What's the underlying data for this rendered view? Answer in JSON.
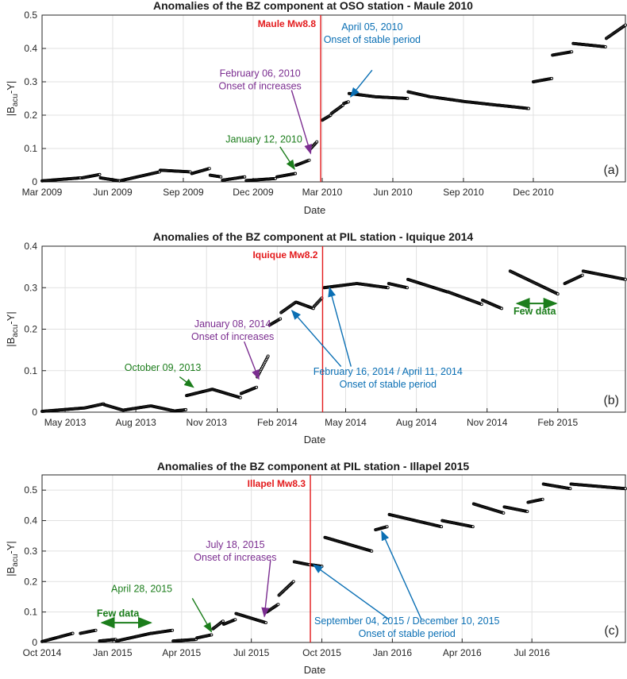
{
  "chart_data": [
    {
      "type": "scatter",
      "panel_label": "(a)",
      "title": "Anomalies of the BZ component at OSO station - Maule 2010",
      "xlabel": "Date",
      "ylabel": "|B_acu-Y|",
      "xlim": [
        "2009-03-01",
        "2011-03-31"
      ],
      "ylim": [
        0,
        0.5
      ],
      "yticks": [
        0,
        0.1,
        0.2,
        0.3,
        0.4,
        0.5
      ],
      "xticks": [
        {
          "date": "2009-03-01",
          "label": "Mar 2009"
        },
        {
          "date": "2009-06-01",
          "label": "Jun 2009"
        },
        {
          "date": "2009-09-01",
          "label": "Sep 2009"
        },
        {
          "date": "2009-12-01",
          "label": "Dec 2009"
        },
        {
          "date": "2010-03-01",
          "label": "Mar 2010"
        },
        {
          "date": "2010-06-01",
          "label": "Jun 2010"
        },
        {
          "date": "2010-09-01",
          "label": "Sep 2010"
        },
        {
          "date": "2010-12-01",
          "label": "Dec 2010"
        }
      ],
      "grid": true,
      "earthquake": {
        "date": "2010-02-27",
        "label": "Maule Mw8.8"
      },
      "segments": [
        {
          "start": "2009-03-01",
          "end": "2009-04-20",
          "y0": 0.003,
          "y1": 0.012
        },
        {
          "start": "2009-04-22",
          "end": "2009-05-15",
          "y0": 0.012,
          "y1": 0.022
        },
        {
          "start": "2009-05-16",
          "end": "2009-06-10",
          "y0": 0.012,
          "y1": 0.003
        },
        {
          "start": "2009-06-12",
          "end": "2009-08-01",
          "y0": 0.004,
          "y1": 0.03
        },
        {
          "start": "2009-08-02",
          "end": "2009-09-10",
          "y0": 0.035,
          "y1": 0.03
        },
        {
          "start": "2009-09-12",
          "end": "2009-10-05",
          "y0": 0.025,
          "y1": 0.04
        },
        {
          "start": "2009-10-06",
          "end": "2009-10-20",
          "y0": 0.02,
          "y1": 0.015
        },
        {
          "start": "2009-10-22",
          "end": "2009-11-20",
          "y0": 0.005,
          "y1": 0.015
        },
        {
          "start": "2009-11-22",
          "end": "2009-12-30",
          "y0": 0.004,
          "y1": 0.01
        },
        {
          "start": "2010-01-01",
          "end": "2010-01-25",
          "y0": 0.015,
          "y1": 0.025
        },
        {
          "start": "2010-01-26",
          "end": "2010-02-12",
          "y0": 0.05,
          "y1": 0.065
        },
        {
          "start": "2010-02-14",
          "end": "2010-02-22",
          "y0": 0.1,
          "y1": 0.12
        },
        {
          "start": "2010-03-01",
          "end": "2010-03-12",
          "y0": 0.185,
          "y1": 0.2
        },
        {
          "start": "2010-03-13",
          "end": "2010-03-28",
          "y0": 0.205,
          "y1": 0.23
        },
        {
          "start": "2010-03-29",
          "end": "2010-04-04",
          "y0": 0.235,
          "y1": 0.24
        },
        {
          "start": "2010-04-05",
          "end": "2010-05-10",
          "y0": 0.265,
          "y1": 0.255
        },
        {
          "start": "2010-05-11",
          "end": "2010-06-20",
          "y0": 0.255,
          "y1": 0.25
        },
        {
          "start": "2010-06-21",
          "end": "2010-07-20",
          "y0": 0.27,
          "y1": 0.255
        },
        {
          "start": "2010-07-21",
          "end": "2010-09-05",
          "y0": 0.255,
          "y1": 0.24
        },
        {
          "start": "2010-09-06",
          "end": "2010-10-15",
          "y0": 0.24,
          "y1": 0.23
        },
        {
          "start": "2010-10-16",
          "end": "2010-11-25",
          "y0": 0.23,
          "y1": 0.22
        },
        {
          "start": "2010-12-01",
          "end": "2010-12-25",
          "y0": 0.3,
          "y1": 0.31
        },
        {
          "start": "2010-12-26",
          "end": "2011-01-20",
          "y0": 0.38,
          "y1": 0.39
        },
        {
          "start": "2011-01-22",
          "end": "2011-03-05",
          "y0": 0.415,
          "y1": 0.405
        },
        {
          "start": "2011-03-06",
          "end": "2011-03-31",
          "y0": 0.43,
          "y1": 0.47
        }
      ],
      "annotations": [
        {
          "lines": [
            "January 12, 2010"
          ],
          "color": "#1b7d1b",
          "text_date": "2009-12-15",
          "text_y": 0.118,
          "from_date": "2010-01-05",
          "from_y": 0.105,
          "to_date": "2010-01-24",
          "to_y": 0.038
        },
        {
          "lines": [
            "February 06, 2010",
            "Onset of increases"
          ],
          "color": "#7b2d90",
          "text_date": "2009-12-10",
          "text_y": 0.315,
          "from_date": "2010-01-20",
          "from_y": 0.275,
          "to_date": "2010-02-14",
          "to_y": 0.085
        },
        {
          "lines": [
            "April 05, 2010",
            "Onset of stable period"
          ],
          "color": "#0a6fb4",
          "text_date": "2010-05-05",
          "text_y": 0.455,
          "from_date": "2010-05-05",
          "from_y": 0.335,
          "to_date": "2010-04-07",
          "to_y": 0.255
        }
      ],
      "text_labels": []
    },
    {
      "type": "scatter",
      "panel_label": "(b)",
      "title": "Anomalies of the BZ component at PIL station - Iquique 2014",
      "xlabel": "Date",
      "ylabel": "|B_acu-Y|",
      "xlim": [
        "2013-04-01",
        "2015-04-30"
      ],
      "ylim": [
        0,
        0.4
      ],
      "yticks": [
        0,
        0.1,
        0.2,
        0.3,
        0.4
      ],
      "xticks": [
        {
          "date": "2013-05-01",
          "label": "May 2013"
        },
        {
          "date": "2013-08-01",
          "label": "Aug 2013"
        },
        {
          "date": "2013-11-01",
          "label": "Nov 2013"
        },
        {
          "date": "2014-02-01",
          "label": "Feb 2014"
        },
        {
          "date": "2014-05-01",
          "label": "May 2014"
        },
        {
          "date": "2014-08-01",
          "label": "Aug 2014"
        },
        {
          "date": "2014-11-01",
          "label": "Nov 2014"
        },
        {
          "date": "2015-02-01",
          "label": "Feb 2015"
        }
      ],
      "grid": true,
      "earthquake": {
        "date": "2014-04-01",
        "label": "Iquique Mw8.2"
      },
      "segments": [
        {
          "start": "2013-04-01",
          "end": "2013-05-25",
          "y0": 0.002,
          "y1": 0.01
        },
        {
          "start": "2013-05-26",
          "end": "2013-06-20",
          "y0": 0.01,
          "y1": 0.02
        },
        {
          "start": "2013-06-21",
          "end": "2013-07-15",
          "y0": 0.018,
          "y1": 0.005
        },
        {
          "start": "2013-07-16",
          "end": "2013-08-20",
          "y0": 0.005,
          "y1": 0.015
        },
        {
          "start": "2013-08-21",
          "end": "2013-09-20",
          "y0": 0.015,
          "y1": 0.003
        },
        {
          "start": "2013-09-21",
          "end": "2013-10-05",
          "y0": 0.003,
          "y1": 0.006
        },
        {
          "start": "2013-10-06",
          "end": "2013-11-08",
          "y0": 0.04,
          "y1": 0.055
        },
        {
          "start": "2013-11-09",
          "end": "2013-12-15",
          "y0": 0.055,
          "y1": 0.035
        },
        {
          "start": "2013-12-16",
          "end": "2014-01-05",
          "y0": 0.045,
          "y1": 0.06
        },
        {
          "start": "2014-01-06",
          "end": "2014-01-20",
          "y0": 0.085,
          "y1": 0.135
        },
        {
          "start": "2014-01-22",
          "end": "2014-02-05",
          "y0": 0.21,
          "y1": 0.225
        },
        {
          "start": "2014-02-06",
          "end": "2014-02-25",
          "y0": 0.24,
          "y1": 0.265
        },
        {
          "start": "2014-02-26",
          "end": "2014-03-20",
          "y0": 0.265,
          "y1": 0.25
        },
        {
          "start": "2014-03-21",
          "end": "2014-03-31",
          "y0": 0.255,
          "y1": 0.275
        },
        {
          "start": "2014-04-03",
          "end": "2014-05-15",
          "y0": 0.3,
          "y1": 0.31
        },
        {
          "start": "2014-05-16",
          "end": "2014-06-25",
          "y0": 0.31,
          "y1": 0.3
        },
        {
          "start": "2014-06-26",
          "end": "2014-07-20",
          "y0": 0.31,
          "y1": 0.3
        },
        {
          "start": "2014-07-21",
          "end": "2014-09-10",
          "y0": 0.32,
          "y1": 0.29
        },
        {
          "start": "2014-09-11",
          "end": "2014-10-25",
          "y0": 0.29,
          "y1": 0.26
        },
        {
          "start": "2014-10-26",
          "end": "2014-11-20",
          "y0": 0.27,
          "y1": 0.25
        },
        {
          "start": "2014-12-01",
          "end": "2015-02-01",
          "y0": 0.34,
          "y1": 0.285
        },
        {
          "start": "2015-02-10",
          "end": "2015-03-05",
          "y0": 0.31,
          "y1": 0.33
        },
        {
          "start": "2015-03-06",
          "end": "2015-04-30",
          "y0": 0.34,
          "y1": 0.32
        }
      ],
      "annotations": [
        {
          "lines": [
            "October 09, 2013"
          ],
          "color": "#1b7d1b",
          "text_date": "2013-09-05",
          "text_y": 0.1,
          "from_date": "2013-09-27",
          "from_y": 0.085,
          "to_date": "2013-10-15",
          "to_y": 0.06
        },
        {
          "lines": [
            "January 08, 2014",
            "Onset of increases"
          ],
          "color": "#7b2d90",
          "text_date": "2013-12-05",
          "text_y": 0.205,
          "from_date": "2013-12-20",
          "from_y": 0.17,
          "to_date": "2014-01-08",
          "to_y": 0.08
        },
        {
          "lines": [
            "February 16, 2014 / April 11, 2014",
            "Onset of stable period"
          ],
          "color": "#0a6fb4",
          "text_date": "2014-06-25",
          "text_y": 0.09,
          "from_date": "2014-04-25",
          "from_y": 0.11,
          "to_date": "2014-02-20",
          "to_y": 0.245
        },
        {
          "lines": [],
          "color": "#0a6fb4",
          "text_date": "2014-06-25",
          "text_y": 0.09,
          "from_date": "2014-05-08",
          "from_y": 0.11,
          "to_date": "2014-04-10",
          "to_y": 0.3
        }
      ],
      "text_labels": [
        {
          "text": "Few data",
          "date": "2015-01-02",
          "y": 0.235
        }
      ],
      "double_arrows": [
        {
          "start": "2014-12-10",
          "end": "2015-01-30",
          "y": 0.262
        }
      ]
    },
    {
      "type": "scatter",
      "panel_label": "(c)",
      "title": "Anomalies of the BZ component at PIL station - Illapel 2015",
      "xlabel": "Date",
      "ylabel": "|B_acu-Y|",
      "xlim": [
        "2014-10-01",
        "2016-10-31"
      ],
      "ylim": [
        0,
        0.55
      ],
      "yticks": [
        0,
        0.1,
        0.2,
        0.3,
        0.4,
        0.5
      ],
      "xticks": [
        {
          "date": "2014-10-01",
          "label": "Oct 2014"
        },
        {
          "date": "2015-01-01",
          "label": "Jan 2015"
        },
        {
          "date": "2015-04-01",
          "label": "Apr 2015"
        },
        {
          "date": "2015-07-01",
          "label": "Jul 2015"
        },
        {
          "date": "2015-10-01",
          "label": "Oct 2015"
        },
        {
          "date": "2016-01-01",
          "label": "Jan 2016"
        },
        {
          "date": "2016-04-01",
          "label": "Apr 2016"
        },
        {
          "date": "2016-07-01",
          "label": "Jul 2016"
        }
      ],
      "grid": true,
      "earthquake": {
        "date": "2015-09-16",
        "label": "Illapel Mw8.3"
      },
      "segments": [
        {
          "start": "2014-10-01",
          "end": "2014-11-10",
          "y0": 0.003,
          "y1": 0.03
        },
        {
          "start": "2014-11-20",
          "end": "2014-12-10",
          "y0": 0.03,
          "y1": 0.04
        },
        {
          "start": "2014-12-15",
          "end": "2015-01-05",
          "y0": 0.005,
          "y1": 0.01
        },
        {
          "start": "2015-01-06",
          "end": "2015-02-20",
          "y0": 0.005,
          "y1": 0.03
        },
        {
          "start": "2015-02-21",
          "end": "2015-03-20",
          "y0": 0.03,
          "y1": 0.04
        },
        {
          "start": "2015-03-21",
          "end": "2015-04-20",
          "y0": 0.005,
          "y1": 0.01
        },
        {
          "start": "2015-04-21",
          "end": "2015-05-10",
          "y0": 0.015,
          "y1": 0.025
        },
        {
          "start": "2015-05-12",
          "end": "2015-05-25",
          "y0": 0.045,
          "y1": 0.07
        },
        {
          "start": "2015-05-26",
          "end": "2015-06-10",
          "y0": 0.06,
          "y1": 0.075
        },
        {
          "start": "2015-06-11",
          "end": "2015-07-20",
          "y0": 0.095,
          "y1": 0.065
        },
        {
          "start": "2015-07-21",
          "end": "2015-08-05",
          "y0": 0.1,
          "y1": 0.125
        },
        {
          "start": "2015-08-06",
          "end": "2015-08-25",
          "y0": 0.155,
          "y1": 0.2
        },
        {
          "start": "2015-08-26",
          "end": "2015-09-15",
          "y0": 0.265,
          "y1": 0.255
        },
        {
          "start": "2015-09-17",
          "end": "2015-10-01",
          "y0": 0.255,
          "y1": 0.25
        },
        {
          "start": "2015-10-05",
          "end": "2015-12-05",
          "y0": 0.345,
          "y1": 0.3
        },
        {
          "start": "2015-12-10",
          "end": "2015-12-25",
          "y0": 0.37,
          "y1": 0.38
        },
        {
          "start": "2015-12-28",
          "end": "2016-03-05",
          "y0": 0.42,
          "y1": 0.38
        },
        {
          "start": "2016-03-06",
          "end": "2016-04-15",
          "y0": 0.4,
          "y1": 0.38
        },
        {
          "start": "2016-04-16",
          "end": "2016-05-25",
          "y0": 0.455,
          "y1": 0.425
        },
        {
          "start": "2016-05-26",
          "end": "2016-06-25",
          "y0": 0.445,
          "y1": 0.43
        },
        {
          "start": "2016-06-26",
          "end": "2016-07-15",
          "y0": 0.46,
          "y1": 0.47
        },
        {
          "start": "2016-07-16",
          "end": "2016-08-20",
          "y0": 0.52,
          "y1": 0.505
        },
        {
          "start": "2016-08-21",
          "end": "2016-10-31",
          "y0": 0.52,
          "y1": 0.505
        }
      ],
      "annotations": [
        {
          "lines": [
            "April 28, 2015"
          ],
          "color": "#1b7d1b",
          "text_date": "2015-02-08",
          "text_y": 0.165,
          "from_date": "2015-04-15",
          "from_y": 0.145,
          "to_date": "2015-05-10",
          "to_y": 0.035
        },
        {
          "lines": [
            "July 18, 2015",
            "Onset of increases"
          ],
          "color": "#7b2d90",
          "text_date": "2015-06-10",
          "text_y": 0.31,
          "from_date": "2015-07-26",
          "from_y": 0.27,
          "to_date": "2015-07-18",
          "to_y": 0.085
        },
        {
          "lines": [
            "September 04, 2015 / December 10, 2015",
            "Onset of stable period"
          ],
          "color": "#0a6fb4",
          "text_date": "2016-01-20",
          "text_y": 0.06,
          "from_date": "2015-12-28",
          "from_y": 0.075,
          "to_date": "2015-09-20",
          "to_y": 0.255
        },
        {
          "lines": [],
          "color": "#0a6fb4",
          "text_date": "2016-01-20",
          "text_y": 0.06,
          "from_date": "2016-02-08",
          "from_y": 0.075,
          "to_date": "2015-12-18",
          "to_y": 0.365
        }
      ],
      "text_labels": [
        {
          "text": "Few data",
          "date": "2015-01-08",
          "y": 0.085
        }
      ],
      "double_arrows": [
        {
          "start": "2014-12-18",
          "end": "2015-02-20",
          "y": 0.065
        }
      ]
    }
  ]
}
